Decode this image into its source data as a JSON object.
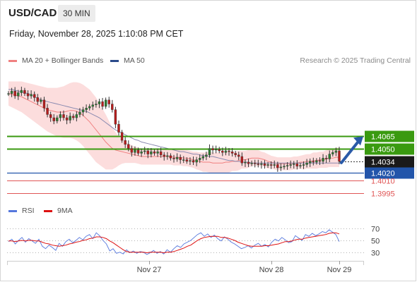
{
  "header": {
    "pair": "USD/CAD",
    "interval": "30 MIN",
    "datetime": "Friday, November 28, 2025 1:10:08 PM CET"
  },
  "legend": {
    "ma_bb": "MA 20 + Bollinger Bands",
    "ma50": "MA 50",
    "rsi": "RSI",
    "rsi_ma": "9MA"
  },
  "copyright": "Research © 2025 Trading Central",
  "colors": {
    "green": "#3a9a10",
    "blue": "#2255aa",
    "red": "#e05555",
    "ma20": "#f08080",
    "ma50": "#8a8ab0",
    "band": "#fbd7d7",
    "rsi": "#5577dd",
    "rsi_ma": "#dd1111",
    "arrow": "#2a5aa8",
    "candle": "#2e7d32"
  },
  "chart_data": [
    {
      "type": "candlestick",
      "title": "USD/CAD 30 MIN",
      "x_ticks": [
        "Nov 27",
        "Nov 28",
        "Nov 29"
      ],
      "ylim": [
        1.3985,
        1.415
      ],
      "last_price": 1.4034,
      "levels": [
        {
          "label": "1.4065",
          "value": 1.4065,
          "kind": "resistance",
          "color": "#3a9a10"
        },
        {
          "label": "1.4050",
          "value": 1.405,
          "kind": "resistance",
          "color": "#3a9a10"
        },
        {
          "label": "1.4034",
          "value": 1.4034,
          "kind": "last",
          "color": "#222222"
        },
        {
          "label": "1.4020",
          "value": 1.402,
          "kind": "pivot",
          "color": "#2255aa"
        },
        {
          "label": "1.4010",
          "value": 1.401,
          "kind": "support",
          "color": "#e05555"
        },
        {
          "label": "1.3995",
          "value": 1.3995,
          "kind": "support",
          "color": "#e05555"
        }
      ],
      "close": [
        1.4118,
        1.4121,
        1.4115,
        1.4119,
        1.4122,
        1.4118,
        1.4115,
        1.4117,
        1.4113,
        1.4108,
        1.411,
        1.41,
        1.4092,
        1.4088,
        1.4084,
        1.4088,
        1.4092,
        1.4088,
        1.4085,
        1.409,
        1.4088,
        1.4092,
        1.4095,
        1.4098,
        1.41,
        1.4102,
        1.4104,
        1.4105,
        1.4108,
        1.4102,
        1.411,
        1.4105,
        1.4098,
        1.408,
        1.407,
        1.406,
        1.4055,
        1.405,
        1.4045,
        1.4048,
        1.4044,
        1.4046,
        1.4047,
        1.4043,
        1.4046,
        1.4044,
        1.4046,
        1.4042,
        1.404,
        1.4041,
        1.4038,
        1.4037,
        1.4039,
        1.4036,
        1.4036,
        1.4034,
        1.4035,
        1.4033,
        1.4036,
        1.4038,
        1.404,
        1.4042,
        1.405,
        1.4048,
        1.4049,
        1.4047,
        1.4045,
        1.4047,
        1.4046,
        1.4044,
        1.4042,
        1.404,
        1.4032,
        1.4033,
        1.4031,
        1.4032,
        1.4031,
        1.403,
        1.4031,
        1.4029,
        1.403,
        1.4029,
        1.403,
        1.4026,
        1.4027,
        1.4028,
        1.4029,
        1.403,
        1.4031,
        1.4028,
        1.4029,
        1.403,
        1.4032,
        1.4034,
        1.4033,
        1.4035,
        1.4034,
        1.4038,
        1.4037,
        1.4043,
        1.4045,
        1.4047,
        1.4034
      ],
      "ma20": [
        1.4118,
        1.4117,
        1.4116,
        1.4115,
        1.4114,
        1.4112,
        1.411,
        1.4108,
        1.4106,
        1.4104,
        1.4102,
        1.41,
        1.4098,
        1.4097,
        1.4096,
        1.4095,
        1.4095,
        1.4095,
        1.4096,
        1.4097,
        1.4097,
        1.4096,
        1.4094,
        1.4091,
        1.4087,
        1.4083,
        1.4078,
        1.4073,
        1.4068,
        1.4063,
        1.4058,
        1.4054,
        1.405,
        1.4048,
        1.4047,
        1.4046,
        1.4045,
        1.4044,
        1.4043,
        1.4042,
        1.4041,
        1.404,
        1.404,
        1.404,
        1.404,
        1.404,
        1.404,
        1.404,
        1.404,
        1.404,
        1.404,
        1.4039,
        1.4039,
        1.4039,
        1.4038,
        1.4038,
        1.4037,
        1.4036,
        1.4035,
        1.4034,
        1.4033,
        1.4033,
        1.4033,
        1.4032,
        1.4032,
        1.4032,
        1.4032,
        1.4033,
        1.4033,
        1.4034,
        1.4034,
        1.4035,
        1.4036,
        1.4036,
        1.4037,
        1.4038,
        1.4038,
        1.4038,
        1.4037,
        1.4036,
        1.4034,
        1.4033,
        1.4032,
        1.4031,
        1.4031,
        1.4031,
        1.4031,
        1.4031,
        1.4032,
        1.4032,
        1.4033,
        1.4033,
        1.4034,
        1.4034,
        1.4035,
        1.4035,
        1.4036,
        1.4036,
        1.4037,
        1.4038,
        1.4038,
        1.4039,
        1.4039
      ],
      "ma50": [
        1.4123,
        1.4123,
        1.4122,
        1.4121,
        1.412,
        1.4119,
        1.4118,
        1.4116,
        1.4114,
        1.4112,
        1.411,
        1.4109,
        1.4108,
        1.4107,
        1.4106,
        1.4105,
        1.4104,
        1.4103,
        1.4102,
        1.4101,
        1.41,
        1.4099,
        1.4098,
        1.4097,
        1.4096,
        1.4094,
        1.4092,
        1.409,
        1.4088,
        1.4085,
        1.4082,
        1.4079,
        1.4076,
        1.4073,
        1.4071,
        1.4069,
        1.4067,
        1.4065,
        1.4063,
        1.4061,
        1.406,
        1.4058,
        1.4057,
        1.4056,
        1.4055,
        1.4054,
        1.4053,
        1.4052,
        1.4051,
        1.405,
        1.4049,
        1.4048,
        1.4047,
        1.4046,
        1.4046,
        1.4045,
        1.4044,
        1.4043,
        1.4043,
        1.4042,
        1.4041,
        1.4041,
        1.404,
        1.404,
        1.4039,
        1.4038,
        1.4037,
        1.4036,
        1.4035,
        1.4035,
        1.4034,
        1.4034,
        1.4033,
        1.4033,
        1.4033,
        1.4032,
        1.4032,
        1.4032,
        1.4032,
        1.4032,
        1.4032,
        1.4032,
        1.4032,
        1.4032,
        1.4032,
        1.4032,
        1.4032,
        1.4032,
        1.4032,
        1.4032,
        1.4032,
        1.4032,
        1.4032,
        1.4032,
        1.4032,
        1.4032,
        1.4032,
        1.4032,
        1.4032,
        1.4032,
        1.4032,
        1.4032,
        1.4032
      ],
      "bollinger_width": [
        0.0015,
        0.0016,
        0.0017,
        0.0018,
        0.0019,
        0.002,
        0.0021,
        0.0022,
        0.0023,
        0.0024,
        0.0025,
        0.0026,
        0.0027,
        0.0028,
        0.0029,
        0.003,
        0.0031,
        0.0032,
        0.0033,
        0.0034,
        0.0035,
        0.0036,
        0.0037,
        0.0038,
        0.0039,
        0.004,
        0.004,
        0.004,
        0.0038,
        0.0036,
        0.0034,
        0.003,
        0.0026,
        0.0022,
        0.0018,
        0.0015,
        0.0013,
        0.0012,
        0.0011,
        0.001,
        0.001,
        0.001,
        0.001,
        0.001,
        0.001,
        0.001,
        0.001,
        0.001,
        0.001,
        0.001,
        0.001,
        0.001,
        0.001,
        0.001,
        0.001,
        0.001,
        0.001,
        0.001,
        0.0011,
        0.0011,
        0.0012,
        0.0012,
        0.0013,
        0.0013,
        0.0013,
        0.0013,
        0.0013,
        0.0013,
        0.0013,
        0.0012,
        0.0012,
        0.0012,
        0.0011,
        0.0011,
        0.0011,
        0.001,
        0.001,
        0.001,
        0.0009,
        0.0009,
        0.0009,
        0.0008,
        0.0008,
        0.0008,
        0.0008,
        0.0008,
        0.0008,
        0.0008,
        0.0008,
        0.0008,
        0.0008,
        0.0009,
        0.0009,
        0.0009,
        0.001,
        0.001,
        0.001,
        0.001,
        0.0011,
        0.0011,
        0.0011,
        0.0012,
        0.0012
      ],
      "arrow": {
        "from": 1.4034,
        "to": 1.4065
      }
    },
    {
      "type": "line",
      "title": "RSI",
      "yticks": [
        70,
        50,
        30
      ],
      "ylim": [
        20,
        80
      ],
      "rsi": [
        48,
        52,
        44,
        50,
        55,
        47,
        53,
        49,
        45,
        52,
        40,
        36,
        42,
        38,
        33,
        45,
        40,
        48,
        52,
        46,
        50,
        55,
        51,
        57,
        60,
        53,
        63,
        58,
        50,
        44,
        32,
        36,
        28,
        30,
        27,
        34,
        29,
        32,
        28,
        31,
        30,
        26,
        29,
        33,
        28,
        31,
        27,
        34,
        30,
        36,
        41,
        38,
        44,
        47,
        50,
        55,
        60,
        63,
        57,
        61,
        55,
        59,
        53,
        49,
        56,
        52,
        47,
        44,
        40,
        36,
        38,
        41,
        37,
        42,
        45,
        40,
        43,
        39,
        47,
        52,
        49,
        55,
        51,
        46,
        48,
        58,
        54,
        50,
        60,
        57,
        62,
        58,
        61,
        65,
        63,
        68,
        64,
        60,
        48
      ],
      "ma9": [
        49,
        49,
        48,
        49,
        50,
        49,
        50,
        50,
        49,
        49,
        47,
        45,
        44,
        42,
        41,
        40,
        41,
        42,
        44,
        45,
        47,
        48,
        50,
        51,
        53,
        54,
        56,
        56,
        55,
        53,
        49,
        46,
        42,
        38,
        34,
        31,
        30,
        30,
        30,
        30,
        30,
        29,
        30,
        30,
        30,
        30,
        29,
        30,
        30,
        31,
        33,
        35,
        37,
        40,
        42,
        46,
        50,
        53,
        55,
        56,
        57,
        57,
        57,
        55,
        55,
        54,
        52,
        50,
        47,
        45,
        43,
        41,
        40,
        40,
        40,
        40,
        41,
        41,
        42,
        43,
        44,
        46,
        48,
        48,
        49,
        51,
        52,
        52,
        54,
        55,
        56,
        57,
        58,
        59,
        60,
        62,
        63,
        63,
        61
      ]
    }
  ]
}
